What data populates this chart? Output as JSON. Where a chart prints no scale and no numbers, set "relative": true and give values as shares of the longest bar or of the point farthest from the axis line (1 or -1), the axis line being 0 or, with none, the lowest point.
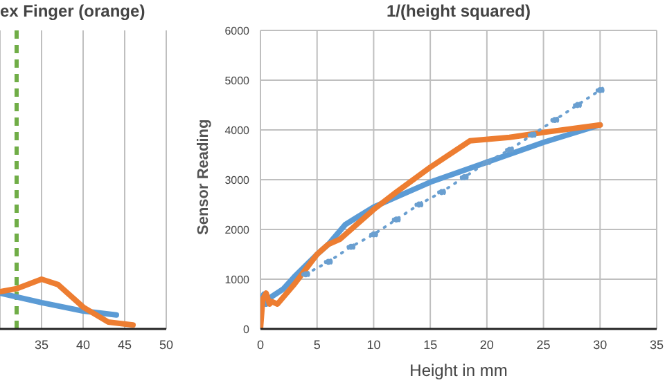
{
  "chart_data": [
    {
      "type": "line",
      "title": "ex Finger (orange)",
      "relative": true,
      "xlim": [
        30,
        50
      ],
      "xticks": [
        35,
        40,
        45,
        50
      ],
      "grid": "x",
      "tick_labels": "x",
      "legend": false,
      "marker": "none",
      "line_style": "solid",
      "ref_lines": [
        {
          "axis": "x",
          "value": 32,
          "color": "#70ad47",
          "line_style": "dashed"
        }
      ],
      "series": [
        {
          "color": "#5b9bd5",
          "x": [
            30,
            35,
            40,
            44
          ],
          "values": [
            0.72,
            0.53,
            0.36,
            0.28
          ]
        },
        {
          "color": "#ed7d31",
          "x": [
            30,
            32,
            35,
            37,
            40,
            43,
            46
          ],
          "values": [
            0.75,
            0.81,
            1,
            0.89,
            0.44,
            0.14,
            0.08
          ]
        }
      ]
    },
    {
      "type": "line",
      "title": "1/(height squared)",
      "xlabel": "Height in mm",
      "ylabel": "Sensor Reading",
      "xlim": [
        0,
        35
      ],
      "xticks": [
        0,
        5,
        10,
        15,
        20,
        25,
        30,
        35
      ],
      "ylim": [
        0,
        6000
      ],
      "yticks": [
        0,
        1000,
        2000,
        3000,
        4000,
        5000,
        6000
      ],
      "grid": true,
      "legend": false,
      "marker": "none",
      "line_style": "solid",
      "series": [
        {
          "color": "#5b9bd5",
          "x": [
            0,
            0.3,
            0.5,
            1,
            2,
            3,
            5,
            6,
            7.5,
            10,
            12,
            15,
            20,
            25,
            30
          ],
          "values": [
            550,
            700,
            500,
            650,
            800,
            1050,
            1500,
            1700,
            2100,
            2450,
            2650,
            2950,
            3350,
            3750,
            4100
          ]
        },
        {
          "color": "#ed7d31",
          "x": [
            0,
            0.2,
            0.5,
            0.8,
            1,
            1.5,
            3,
            5,
            6,
            7,
            8,
            10,
            12,
            15,
            18.5,
            22,
            25,
            30
          ],
          "values": [
            0,
            600,
            720,
            500,
            550,
            500,
            900,
            1500,
            1700,
            1800,
            2000,
            2400,
            2750,
            3250,
            3780,
            3850,
            3950,
            4100
          ]
        },
        {
          "color": "#6a9fd0",
          "line_style": "dotted",
          "marker": "circle",
          "x": [
            4,
            6,
            8,
            10,
            12,
            14,
            16,
            18,
            20,
            22,
            24,
            26,
            28,
            30
          ],
          "values": [
            1100,
            1350,
            1650,
            1900,
            2200,
            2500,
            2750,
            3050,
            3350,
            3600,
            3900,
            4200,
            4500,
            4800
          ]
        }
      ]
    }
  ]
}
